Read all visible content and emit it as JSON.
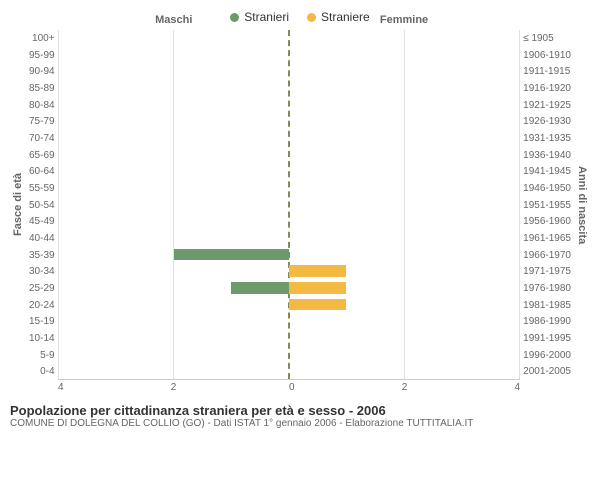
{
  "legend": {
    "male": {
      "label": "Stranieri",
      "color": "#6d9a6d"
    },
    "female": {
      "label": "Straniere",
      "color": "#f4b942"
    }
  },
  "chart": {
    "type": "population-pyramid",
    "left_header": "Maschi",
    "right_header": "Femmine",
    "left_axis_title": "Fasce di età",
    "right_axis_title": "Anni di nascita",
    "x_max": 4,
    "x_ticks": [
      0,
      2,
      4
    ],
    "grid_color": "#e0e0e0",
    "centerline_color": "#888855",
    "background_color": "#ffffff",
    "tick_fontsize": 10,
    "header_fontsize": 11,
    "rows": [
      {
        "age": "100+",
        "birth": "≤ 1905",
        "male": 0,
        "female": 0
      },
      {
        "age": "95-99",
        "birth": "1906-1910",
        "male": 0,
        "female": 0
      },
      {
        "age": "90-94",
        "birth": "1911-1915",
        "male": 0,
        "female": 0
      },
      {
        "age": "85-89",
        "birth": "1916-1920",
        "male": 0,
        "female": 0
      },
      {
        "age": "80-84",
        "birth": "1921-1925",
        "male": 0,
        "female": 0
      },
      {
        "age": "75-79",
        "birth": "1926-1930",
        "male": 0,
        "female": 0
      },
      {
        "age": "70-74",
        "birth": "1931-1935",
        "male": 0,
        "female": 0
      },
      {
        "age": "65-69",
        "birth": "1936-1940",
        "male": 0,
        "female": 0
      },
      {
        "age": "60-64",
        "birth": "1941-1945",
        "male": 0,
        "female": 0
      },
      {
        "age": "55-59",
        "birth": "1946-1950",
        "male": 0,
        "female": 0
      },
      {
        "age": "50-54",
        "birth": "1951-1955",
        "male": 0,
        "female": 0
      },
      {
        "age": "45-49",
        "birth": "1956-1960",
        "male": 0,
        "female": 0
      },
      {
        "age": "40-44",
        "birth": "1961-1965",
        "male": 0,
        "female": 0
      },
      {
        "age": "35-39",
        "birth": "1966-1970",
        "male": 2,
        "female": 0
      },
      {
        "age": "30-34",
        "birth": "1971-1975",
        "male": 0,
        "female": 1
      },
      {
        "age": "25-29",
        "birth": "1976-1980",
        "male": 1,
        "female": 1
      },
      {
        "age": "20-24",
        "birth": "1981-1985",
        "male": 0,
        "female": 1
      },
      {
        "age": "15-19",
        "birth": "1986-1990",
        "male": 0,
        "female": 0
      },
      {
        "age": "10-14",
        "birth": "1991-1995",
        "male": 0,
        "female": 0
      },
      {
        "age": "5-9",
        "birth": "1996-2000",
        "male": 0,
        "female": 0
      },
      {
        "age": "0-4",
        "birth": "2001-2005",
        "male": 0,
        "female": 0
      }
    ]
  },
  "footer": {
    "title": "Popolazione per cittadinanza straniera per età e sesso - 2006",
    "subtitle": "COMUNE DI DOLEGNA DEL COLLIO (GO) - Dati ISTAT 1° gennaio 2006 - Elaborazione TUTTITALIA.IT"
  }
}
